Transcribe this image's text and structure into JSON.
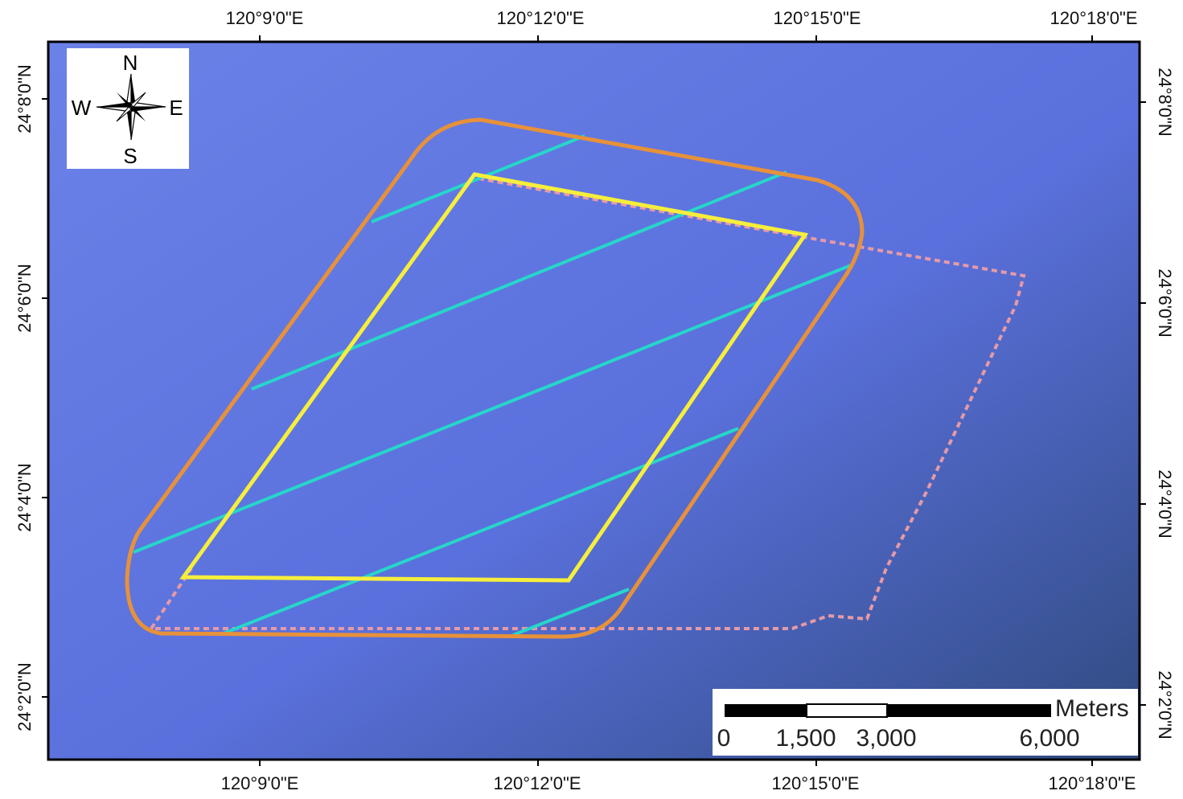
{
  "map": {
    "colors": {
      "water_light": "#6a82e8",
      "water_mid": "#5a70dc",
      "water_dark": "#2f4a7e",
      "boundary_outer": "#e7913a",
      "boundary_inner": "#f6ee3c",
      "track_lines": "#27d6c9",
      "dashed_area": "#e59aa8",
      "frame": "#000000"
    },
    "axes": {
      "top_labels": [
        "120°9'0\"E",
        "120°12'0\"E",
        "120°15'0\"E",
        "120°18'0\"E"
      ],
      "bottom_labels": [
        "120°9'0\"E",
        "120°12'0\"E",
        "120°15'0\"E",
        "120°18'0\"E"
      ],
      "left_labels": [
        "24°8'0\"N",
        "24°6'0\"N",
        "24°4'0\"N",
        "24°2'0\"N"
      ],
      "right_labels": [
        "24°8'0\"N",
        "24°6'0\"N",
        "24°4'0\"N",
        "24°2'0\"N"
      ]
    },
    "compass": {
      "icon": "north-arrow-icon",
      "n": "N",
      "s": "S",
      "e": "E",
      "w": "W"
    },
    "scale_bar": {
      "unit": "Meters",
      "labels": [
        "0",
        "1,500",
        "3,000",
        "6,000"
      ]
    }
  }
}
